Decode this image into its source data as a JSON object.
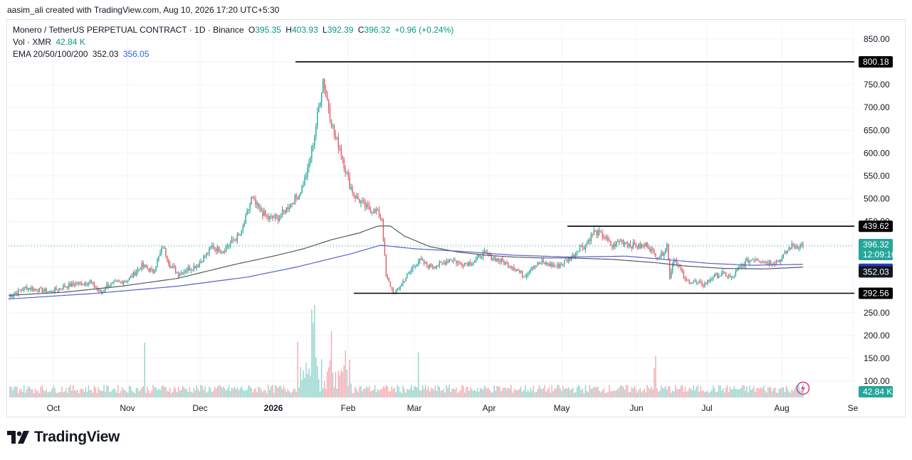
{
  "attribution": "aasim_ali created with TradingView.com, Aug 10, 2026 17:20 UTC+5:30",
  "legend": {
    "symbol": "Monero / TetherUS PERPETUAL CONTRACT · 1D · Binance",
    "o_label": "O",
    "o_value": "395.35",
    "h_label": "H",
    "h_value": "403.93",
    "l_label": "L",
    "l_value": "392.39",
    "c_label": "C",
    "c_value": "396.32",
    "change": "+0.96 (+0.24%)",
    "vol_label": "Vol · XMR",
    "vol_value": "42.84 K",
    "ema_label": "EMA 20/50/100/200",
    "ema_value_1": "352.03",
    "ema_value_2": "356.05"
  },
  "branding": "TradingView",
  "chart_data": {
    "type": "candlestick",
    "price_axis": {
      "ticks": [
        "850.00",
        "750.00",
        "700.00",
        "650.00",
        "600.00",
        "550.00",
        "500.00",
        "450.00",
        "250.00",
        "200.00",
        "150.00",
        "100.00"
      ],
      "range": [
        100,
        850
      ]
    },
    "time_axis": {
      "labels": [
        "Oct",
        "Nov",
        "Dec",
        "2026",
        "Feb",
        "Mar",
        "Apr",
        "May",
        "Jun",
        "Jul",
        "Aug",
        "Se"
      ]
    },
    "horizontal_levels": [
      800.18,
      439.62,
      292.56
    ],
    "price_labels": [
      {
        "text": "800.18",
        "kind": "level"
      },
      {
        "text": "439.62",
        "kind": "level"
      },
      {
        "text": "396.32",
        "kind": "last",
        "sub": "12:09:10"
      },
      {
        "text": "356.05",
        "kind": "ema_blue"
      },
      {
        "text": "352.03",
        "kind": "ema_dark"
      },
      {
        "text": "292.56",
        "kind": "level"
      },
      {
        "text": "42.84 K",
        "kind": "volume"
      }
    ],
    "anchors": [
      [
        0,
        285
      ],
      [
        12,
        305
      ],
      [
        22,
        300
      ],
      [
        30,
        296
      ],
      [
        40,
        308
      ],
      [
        58,
        318
      ],
      [
        66,
        293
      ],
      [
        70,
        310
      ],
      [
        85,
        322
      ],
      [
        95,
        353
      ],
      [
        103,
        340
      ],
      [
        110,
        395
      ],
      [
        115,
        355
      ],
      [
        121,
        335
      ],
      [
        127,
        345
      ],
      [
        135,
        355
      ],
      [
        145,
        395
      ],
      [
        152,
        385
      ],
      [
        160,
        408
      ],
      [
        166,
        425
      ],
      [
        173,
        500
      ],
      [
        178,
        478
      ],
      [
        185,
        457
      ],
      [
        193,
        460
      ],
      [
        199,
        482
      ],
      [
        207,
        510
      ],
      [
        213,
        560
      ],
      [
        218,
        640
      ],
      [
        224,
        762
      ],
      [
        232,
        640
      ],
      [
        236,
        612
      ],
      [
        243,
        530
      ],
      [
        247,
        505
      ],
      [
        255,
        480
      ],
      [
        262,
        472
      ],
      [
        266,
        455
      ],
      [
        269,
        328
      ],
      [
        275,
        290
      ],
      [
        284,
        332
      ],
      [
        292,
        365
      ],
      [
        300,
        352
      ],
      [
        307,
        355
      ],
      [
        315,
        368
      ],
      [
        322,
        358
      ],
      [
        330,
        360
      ],
      [
        338,
        380
      ],
      [
        345,
        370
      ],
      [
        352,
        362
      ],
      [
        360,
        350
      ],
      [
        367,
        330
      ],
      [
        373,
        352
      ],
      [
        380,
        360
      ],
      [
        385,
        355
      ],
      [
        391,
        352
      ],
      [
        398,
        366
      ],
      [
        402,
        375
      ],
      [
        407,
        395
      ],
      [
        410,
        395
      ],
      [
        417,
        428
      ],
      [
        424,
        418
      ],
      [
        430,
        395
      ],
      [
        436,
        408
      ],
      [
        444,
        398
      ],
      [
        450,
        395
      ],
      [
        455,
        400
      ],
      [
        460,
        378
      ],
      [
        465,
        375
      ],
      [
        469,
        400
      ],
      [
        471,
        330
      ],
      [
        474,
        370
      ],
      [
        478,
        348
      ],
      [
        482,
        320
      ],
      [
        488,
        318
      ],
      [
        495,
        310
      ],
      [
        502,
        330
      ],
      [
        510,
        335
      ],
      [
        515,
        325
      ],
      [
        520,
        345
      ],
      [
        525,
        360
      ],
      [
        531,
        370
      ],
      [
        536,
        366
      ],
      [
        541,
        360
      ],
      [
        547,
        362
      ],
      [
        551,
        370
      ],
      [
        557,
        395
      ],
      [
        566,
        398
      ]
    ],
    "ema_dark_anchors": [
      [
        0,
        288
      ],
      [
        40,
        295
      ],
      [
        80,
        308
      ],
      [
        120,
        325
      ],
      [
        160,
        355
      ],
      [
        190,
        375
      ],
      [
        210,
        390
      ],
      [
        230,
        410
      ],
      [
        250,
        425
      ],
      [
        263,
        440
      ],
      [
        272,
        440
      ],
      [
        282,
        418
      ],
      [
        300,
        395
      ],
      [
        320,
        383
      ],
      [
        340,
        376
      ],
      [
        360,
        372
      ],
      [
        380,
        370
      ],
      [
        400,
        370
      ],
      [
        430,
        367
      ],
      [
        460,
        360
      ],
      [
        480,
        353
      ],
      [
        510,
        347
      ],
      [
        540,
        346
      ],
      [
        566,
        350
      ]
    ],
    "ema_blue_anchors": [
      [
        0,
        280
      ],
      [
        60,
        292
      ],
      [
        120,
        308
      ],
      [
        170,
        328
      ],
      [
        205,
        350
      ],
      [
        225,
        365
      ],
      [
        245,
        380
      ],
      [
        265,
        398
      ],
      [
        290,
        390
      ],
      [
        320,
        385
      ],
      [
        360,
        376
      ],
      [
        400,
        372
      ],
      [
        440,
        374
      ],
      [
        470,
        366
      ],
      [
        500,
        358
      ],
      [
        530,
        354
      ],
      [
        566,
        356
      ]
    ],
    "volume": {
      "baseline_k": 0,
      "spikes": [
        [
          97,
          140
        ],
        [
          206,
          142
        ],
        [
          216,
          225
        ],
        [
          217,
          190
        ],
        [
          218,
          236
        ],
        [
          230,
          170
        ],
        [
          240,
          120
        ],
        [
          292,
          115
        ],
        [
          460,
          75
        ],
        [
          461,
          105
        ]
      ]
    }
  },
  "colors": {
    "up": "#26a69a",
    "down": "#e05a65",
    "up_vol": "#8fd3c9",
    "down_vol": "#f3a8ae",
    "ema_dark": "#575a61",
    "ema_blue": "#5b5fd0",
    "grid": "#f0f3fa",
    "level_line": "#000000",
    "last_price_bg": "#26a69a",
    "ema_blue_bg": "#2a3bbd",
    "level_label_bg": "#000000",
    "volume_label_bg": "#26a69a"
  }
}
